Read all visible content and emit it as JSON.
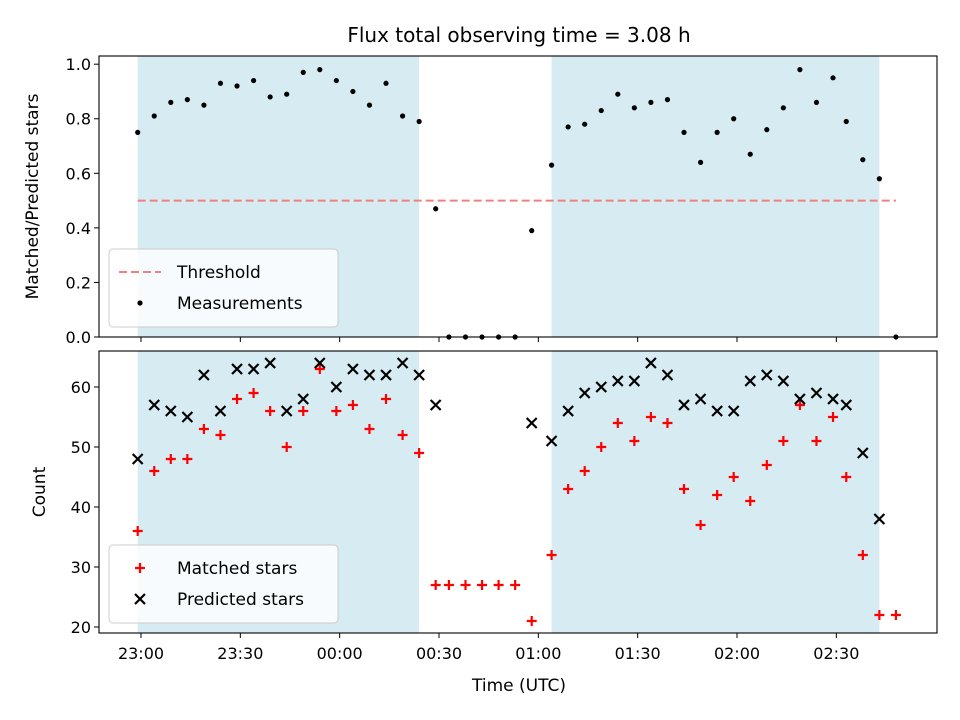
{
  "chart_data": {
    "title": "Flux total observing time = 3.08 h",
    "xlabel": "Time (UTC)",
    "x_ticks": [
      "23:00",
      "23:30",
      "00:00",
      "00:30",
      "01:00",
      "01:30",
      "02:00",
      "02:30"
    ],
    "shaded_intervals": [
      [
        "22:59",
        "00:24"
      ],
      [
        "01:04",
        "02:43"
      ]
    ],
    "shade_color": "#add8e6",
    "panels": [
      {
        "type": "scatter",
        "ylabel": "Matched/Predicted stars",
        "ylim": [
          0,
          1.03
        ],
        "y_ticks": [
          "0.0",
          "0.2",
          "0.4",
          "0.6",
          "0.8",
          "1.0"
        ],
        "threshold": {
          "name": "Threshold",
          "value": 0.5,
          "color": "#f08080"
        },
        "series": [
          {
            "name": "Measurements",
            "color": "#000000",
            "x": [
              "22:59",
              "23:04",
              "23:09",
              "23:14",
              "23:19",
              "23:24",
              "23:29",
              "23:34",
              "23:39",
              "23:44",
              "23:49",
              "23:54",
              "23:59",
              "00:04",
              "00:09",
              "00:14",
              "00:19",
              "00:24",
              "00:29",
              "00:33",
              "00:38",
              "00:43",
              "00:48",
              "00:53",
              "00:58",
              "01:04",
              "01:09",
              "01:14",
              "01:19",
              "01:24",
              "01:29",
              "01:34",
              "01:39",
              "01:44",
              "01:49",
              "01:54",
              "01:59",
              "02:04",
              "02:09",
              "02:14",
              "02:19",
              "02:24",
              "02:29",
              "02:33",
              "02:38",
              "02:43",
              "02:48"
            ],
            "y": [
              0.75,
              0.81,
              0.86,
              0.87,
              0.85,
              0.93,
              0.92,
              0.94,
              0.88,
              0.89,
              0.97,
              0.98,
              0.94,
              0.9,
              0.85,
              0.93,
              0.81,
              0.79,
              0.47,
              0.0,
              0.0,
              0.0,
              0.0,
              0.0,
              0.39,
              0.63,
              0.77,
              0.78,
              0.83,
              0.89,
              0.84,
              0.86,
              0.87,
              0.75,
              0.64,
              0.75,
              0.8,
              0.67,
              0.76,
              0.84,
              0.98,
              0.86,
              0.95,
              0.79,
              0.65,
              0.58,
              0.0
            ]
          }
        ],
        "legend": "lower-left"
      },
      {
        "type": "scatter",
        "ylabel": "Count",
        "ylim": [
          19,
          66
        ],
        "y_ticks": [
          "20",
          "30",
          "40",
          "50",
          "60"
        ],
        "series": [
          {
            "name": "Matched stars",
            "color": "#ff0000",
            "marker": "+",
            "x": [
              "22:59",
              "23:04",
              "23:09",
              "23:14",
              "23:19",
              "23:24",
              "23:29",
              "23:34",
              "23:39",
              "23:44",
              "23:49",
              "23:54",
              "23:59",
              "00:04",
              "00:09",
              "00:14",
              "00:19",
              "00:24",
              "00:29",
              "00:33",
              "00:38",
              "00:43",
              "00:48",
              "00:53",
              "00:58",
              "01:04",
              "01:09",
              "01:14",
              "01:19",
              "01:24",
              "01:29",
              "01:34",
              "01:39",
              "01:44",
              "01:49",
              "01:54",
              "01:59",
              "02:04",
              "02:09",
              "02:14",
              "02:19",
              "02:24",
              "02:29",
              "02:33",
              "02:38",
              "02:43",
              "02:48"
            ],
            "y": [
              36,
              46,
              48,
              48,
              53,
              52,
              58,
              59,
              56,
              50,
              56,
              63,
              56,
              57,
              53,
              58,
              52,
              49,
              27,
              27,
              27,
              27,
              27,
              27,
              21,
              32,
              43,
              46,
              50,
              54,
              51,
              55,
              54,
              43,
              37,
              42,
              45,
              41,
              47,
              51,
              57,
              51,
              55,
              45,
              32,
              22,
              22
            ]
          },
          {
            "name": "Predicted stars",
            "color": "#000000",
            "marker": "x",
            "x": [
              "22:59",
              "23:04",
              "23:09",
              "23:14",
              "23:19",
              "23:24",
              "23:29",
              "23:34",
              "23:39",
              "23:44",
              "23:49",
              "23:54",
              "23:59",
              "00:04",
              "00:09",
              "00:14",
              "00:19",
              "00:24",
              "00:29",
              "00:58",
              "01:04",
              "01:09",
              "01:14",
              "01:19",
              "01:24",
              "01:29",
              "01:34",
              "01:39",
              "01:44",
              "01:49",
              "01:54",
              "01:59",
              "02:04",
              "02:09",
              "02:14",
              "02:19",
              "02:24",
              "02:29",
              "02:33",
              "02:38",
              "02:43"
            ],
            "y": [
              48,
              57,
              56,
              55,
              62,
              56,
              63,
              63,
              64,
              56,
              58,
              64,
              60,
              63,
              62,
              62,
              64,
              62,
              57,
              54,
              51,
              56,
              59,
              60,
              61,
              61,
              64,
              62,
              57,
              58,
              56,
              56,
              61,
              62,
              61,
              58,
              59,
              58,
              57,
              49,
              38
            ]
          }
        ],
        "legend": "lower-left"
      }
    ]
  }
}
